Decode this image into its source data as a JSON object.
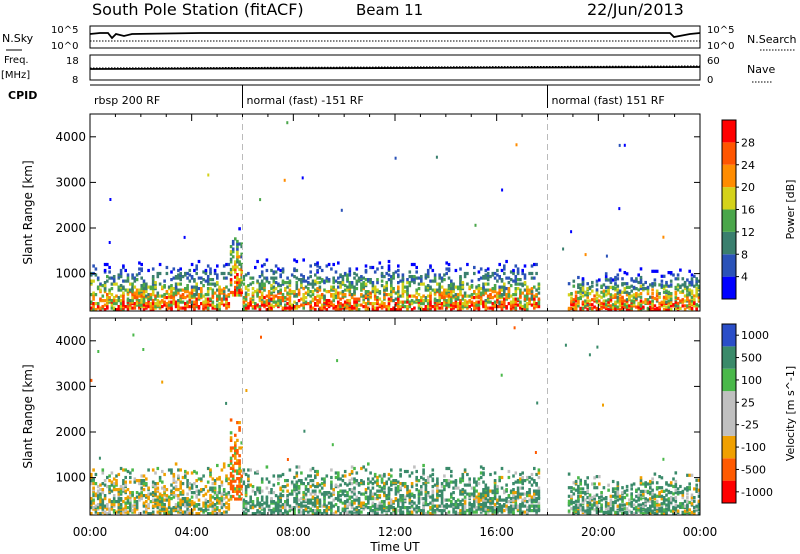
{
  "header": {
    "station": "South Pole Station (fitACF)",
    "beam": "Beam 11",
    "date": "22/Jun/2013"
  },
  "labels": {
    "nsky": "N.Sky",
    "nsearch": "N.Search",
    "freq": "Freq.",
    "freq_unit": "[MHz]",
    "nave": "Nave",
    "cpid": "CPID",
    "noise_ticks": [
      "10^5",
      "10^0"
    ],
    "freq_ticks": [
      "18",
      "8"
    ],
    "nave_ticks": [
      "60",
      "0"
    ]
  },
  "cpid_segments": [
    {
      "label": "rbsp 200 RF",
      "start": 0
    },
    {
      "label": "normal (fast) -151 RF",
      "start": 6
    },
    {
      "label": "normal (fast) 151 RF",
      "start": 18
    }
  ],
  "colors": {
    "power": [
      "#0000ff",
      "#2a52b8",
      "#3a7f6e",
      "#4aa64a",
      "#d4d21a",
      "#ff8c00",
      "#ff5500",
      "#ff0000"
    ],
    "velocity": [
      "#ff0000",
      "#ff5a00",
      "#f0a000",
      "#c0c0c0",
      "#c0c0c0",
      "#4ab84a",
      "#3a8a6a",
      "#2a4ec8"
    ]
  },
  "chart_data": [
    {
      "type": "heatmap",
      "title": "",
      "xlabel": "Time UT",
      "ylabel": "Slant Range [km]",
      "xlim": [
        0,
        24
      ],
      "ylim": [
        180,
        4500
      ],
      "x_ticks": [
        "00:00",
        "04:00",
        "08:00",
        "12:00",
        "16:00",
        "20:00",
        "00:00"
      ],
      "y_ticks": [
        "1000",
        "2000",
        "3000",
        "4000"
      ],
      "colorbar_label": "Power [dB]",
      "colorbar_ticks": [
        "4",
        "8",
        "12",
        "16",
        "20",
        "24",
        "28"
      ],
      "clim": [
        0,
        32
      ],
      "grid": false,
      "echo_regions_approx": [
        {
          "t_start": 0.0,
          "t_end": 5.5,
          "range_start": 180,
          "range_end": 1300,
          "peak_power_db": 28
        },
        {
          "t_start": 5.5,
          "t_end": 6.0,
          "range_start": 500,
          "range_end": 2400,
          "peak_power_db": 24
        },
        {
          "t_start": 6.0,
          "t_end": 17.7,
          "range_start": 180,
          "range_end": 1300,
          "peak_power_db": 28
        },
        {
          "t_start": 18.8,
          "t_end": 24.0,
          "range_start": 180,
          "range_end": 1100,
          "peak_power_db": 24
        }
      ]
    },
    {
      "type": "heatmap",
      "title": "",
      "xlabel": "Time UT",
      "ylabel": "Slant Range [km]",
      "xlim": [
        0,
        24
      ],
      "ylim": [
        180,
        4500
      ],
      "x_ticks": [
        "00:00",
        "04:00",
        "08:00",
        "12:00",
        "16:00",
        "20:00",
        "00:00"
      ],
      "y_ticks": [
        "1000",
        "2000",
        "3000",
        "4000"
      ],
      "colorbar_label": "Velocity [m s^-1]",
      "colorbar_ticks": [
        "1000",
        "500",
        "100",
        "25",
        "-25",
        "-100",
        "-500",
        "-1000"
      ],
      "clim": [
        -1000,
        1000
      ],
      "grid": false,
      "echo_regions_approx": [
        {
          "t_start": 0.0,
          "t_end": 5.5,
          "range_start": 180,
          "range_end": 1300,
          "dominant": "mixed (green/orange)"
        },
        {
          "t_start": 5.5,
          "t_end": 6.0,
          "range_start": 500,
          "range_end": 2400,
          "dominant": "orange"
        },
        {
          "t_start": 6.0,
          "t_end": 17.7,
          "range_start": 180,
          "range_end": 1300,
          "dominant": "green"
        },
        {
          "t_start": 18.8,
          "t_end": 24.0,
          "range_start": 180,
          "range_end": 1100,
          "dominant": "green"
        }
      ]
    }
  ]
}
